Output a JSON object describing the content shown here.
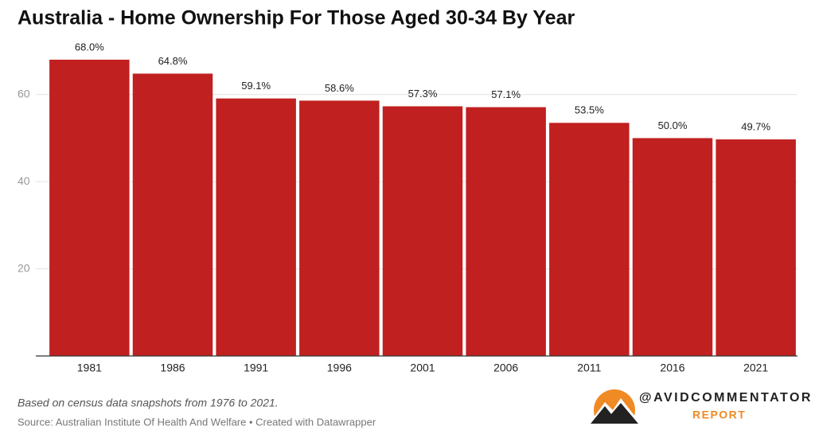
{
  "chart_data": {
    "type": "bar",
    "title": "Australia - Home Ownership For Those Aged 30-34 By Year",
    "categories": [
      "1981",
      "1986",
      "1991",
      "1996",
      "2001",
      "2006",
      "2011",
      "2016",
      "2021"
    ],
    "values": [
      68.0,
      64.8,
      59.1,
      58.6,
      57.3,
      57.1,
      53.5,
      50.0,
      49.7
    ],
    "value_labels": [
      "68.0%",
      "64.8%",
      "59.1%",
      "58.6%",
      "57.3%",
      "57.1%",
      "53.5%",
      "50.0%",
      "49.7%"
    ],
    "color": "#c0201f",
    "ylim": [
      0,
      70
    ],
    "yticks": [
      20,
      40,
      60
    ],
    "grid": true,
    "notes": "Based on census data snapshots from 1976 to 2021.",
    "source": "Source: Australian Institute Of Health And Welfare • Created with Datawrapper",
    "brand": {
      "handle": "@AVIDCOMMENTATOR",
      "sub": "REPORT"
    }
  }
}
